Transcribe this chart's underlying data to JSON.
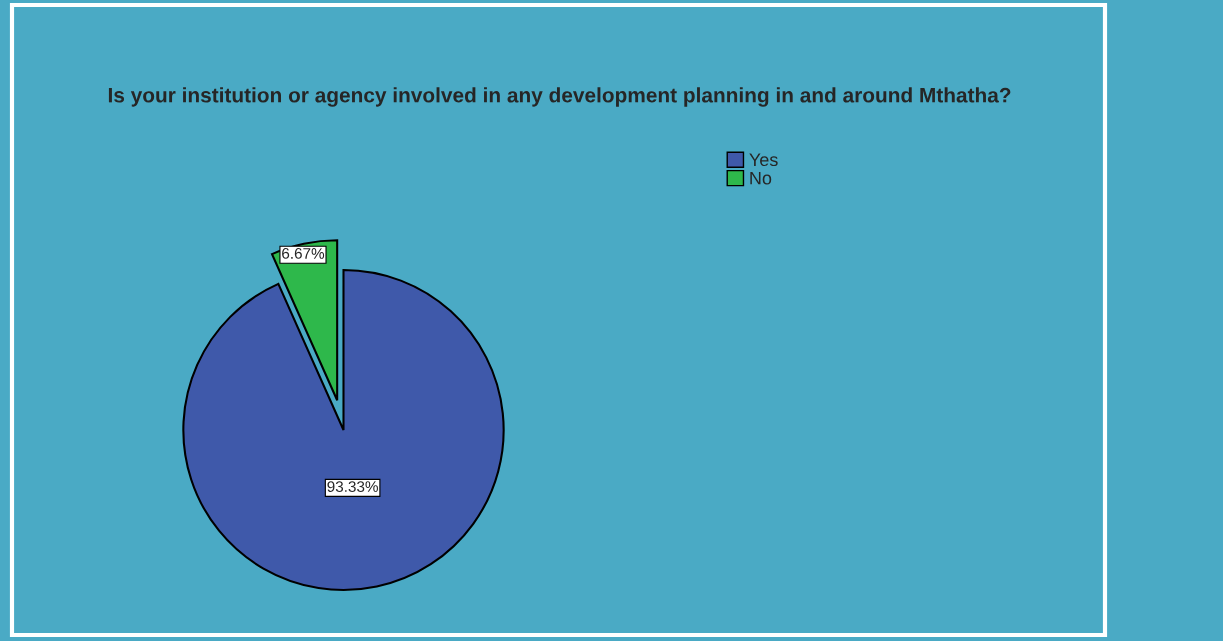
{
  "chart_data": {
    "type": "pie",
    "title": "Is your institution or agency involved in any development planning in and around Mthatha?",
    "categories": [
      "Yes",
      "No"
    ],
    "values": [
      93.33,
      6.67
    ],
    "colors": [
      "#3f59aa",
      "#2eb84b"
    ],
    "value_labels": [
      "93.33%",
      "6.67%"
    ],
    "legend": "top right"
  }
}
